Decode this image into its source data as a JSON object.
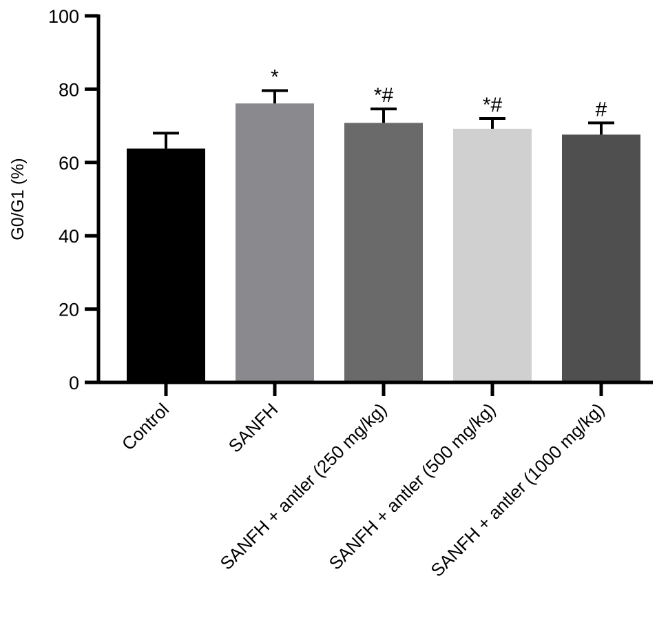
{
  "chart_data": {
    "type": "bar",
    "ylabel": "G0/G1 (%)",
    "xlabel": "",
    "title": "",
    "ylim": [
      0,
      100
    ],
    "yticks": [
      0,
      20,
      40,
      60,
      80,
      100
    ],
    "grid": false,
    "legend": "none",
    "categories": [
      "Control",
      "SANFH",
      "SANFH + antler (250 mg/kg)",
      "SANFH + antler (500 mg/kg)",
      "SANFH + antler (1000 mg/kg)"
    ],
    "values": [
      63.8,
      76.1,
      70.8,
      69.2,
      67.6
    ],
    "error_upper": [
      4.2,
      3.5,
      3.8,
      2.8,
      3.2
    ],
    "significance": [
      "",
      "*",
      "*#",
      "*#",
      "#"
    ],
    "colors": [
      "#000000",
      "#8a8a8e",
      "#6a6a6a",
      "#d0d0d0",
      "#4f4f4f"
    ]
  }
}
